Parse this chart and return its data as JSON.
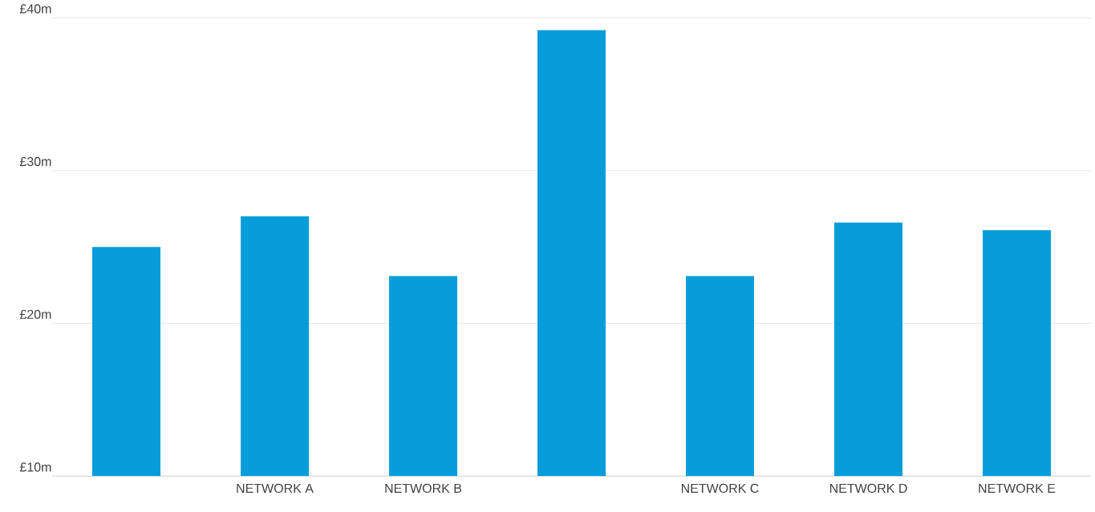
{
  "chart_data": {
    "type": "bar",
    "categories": [
      null,
      "NETWORK A",
      "NETWORK B",
      null,
      "NETWORK C",
      "NETWORK D",
      "NETWORK E"
    ],
    "values": [
      25,
      27,
      23.1,
      39.2,
      23.1,
      26.6,
      26.1
    ],
    "color": "#079ddb",
    "ylim": [
      10,
      40
    ],
    "yticks": [
      {
        "value": 10,
        "label": "£10m"
      },
      {
        "value": 20,
        "label": "£20m"
      },
      {
        "value": 30,
        "label": "£30m"
      },
      {
        "value": 40,
        "label": "£40m"
      }
    ],
    "grid": "y"
  }
}
